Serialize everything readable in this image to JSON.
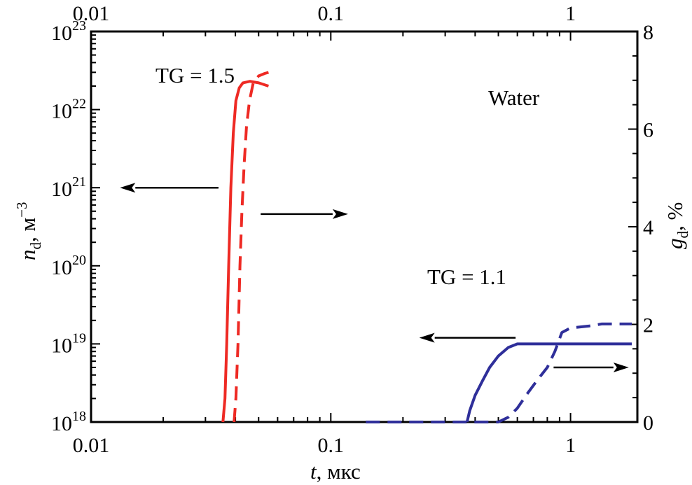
{
  "chart_data": {
    "type": "line",
    "title": "",
    "x_axis": {
      "label_var": "t",
      "label_unit": ", мкс",
      "scale": "log",
      "range": [
        0.01,
        1.9
      ],
      "ticks": [
        {
          "value": 0.01,
          "label": "0.01"
        },
        {
          "value": 0.1,
          "label": "0.1"
        },
        {
          "value": 1,
          "label": "1"
        }
      ]
    },
    "left_axis": {
      "label_var": "n",
      "label_sub": "d",
      "label_unit": ",  м",
      "label_exp": "−3",
      "scale": "log",
      "range": [
        1e+18,
        1e+23
      ],
      "ticks": [
        {
          "value": 1e+18,
          "base": "10",
          "exp": "18"
        },
        {
          "value": 1e+19,
          "base": "10",
          "exp": "19"
        },
        {
          "value": 1e+20,
          "base": "10",
          "exp": "20"
        },
        {
          "value": 1e+21,
          "base": "10",
          "exp": "21"
        },
        {
          "value": 1e+22,
          "base": "10",
          "exp": "22"
        },
        {
          "value": 1e+23,
          "base": "10",
          "exp": "23"
        }
      ]
    },
    "right_axis": {
      "label_var": "g",
      "label_sub": "d",
      "label_unit": ", %",
      "scale": "linear",
      "range": [
        0,
        8
      ],
      "ticks": [
        {
          "value": 0,
          "label": "0"
        },
        {
          "value": 2,
          "label": "2"
        },
        {
          "value": 4,
          "label": "4"
        },
        {
          "value": 6,
          "label": "6"
        },
        {
          "value": 8,
          "label": "8"
        }
      ]
    },
    "annotations": {
      "tg15": "TG = 1.5",
      "tg11": "TG = 1.1",
      "medium": "Water"
    },
    "series": [
      {
        "color": "#ee2a24",
        "dash": false,
        "axis": "left",
        "points": [
          [
            0.0355,
            1e+18
          ],
          [
            0.0362,
            2e+18
          ],
          [
            0.0368,
            1e+19
          ],
          [
            0.0375,
            1e+20
          ],
          [
            0.0383,
            1e+21
          ],
          [
            0.0392,
            5e+21
          ],
          [
            0.0402,
            1.3e+22
          ],
          [
            0.0415,
            1.9e+22
          ],
          [
            0.043,
            2.2e+22
          ],
          [
            0.046,
            2.3e+22
          ],
          [
            0.05,
            2.2e+22
          ],
          [
            0.055,
            2e+22
          ]
        ]
      },
      {
        "color": "#ee2a24",
        "dash": true,
        "axis": "left",
        "points": [
          [
            0.0395,
            1e+18
          ],
          [
            0.0402,
            2e+18
          ],
          [
            0.041,
            1e+19
          ],
          [
            0.0418,
            1e+20
          ],
          [
            0.0426,
            5e+20
          ],
          [
            0.0435,
            2e+21
          ],
          [
            0.0445,
            6e+21
          ],
          [
            0.0458,
            1.3e+22
          ],
          [
            0.0475,
            2.2e+22
          ],
          [
            0.05,
            2.7e+22
          ],
          [
            0.053,
            2.9e+22
          ],
          [
            0.055,
            3e+22
          ]
        ]
      },
      {
        "color": "#2f2f9a",
        "dash": false,
        "axis": "left",
        "points": [
          [
            0.37,
            1e+18
          ],
          [
            0.38,
            1.4e+18
          ],
          [
            0.4,
            2.2e+18
          ],
          [
            0.43,
            3.4e+18
          ],
          [
            0.46,
            5e+18
          ],
          [
            0.5,
            7e+18
          ],
          [
            0.55,
            9e+18
          ],
          [
            0.6,
            1e+19
          ],
          [
            0.7,
            1e+19
          ],
          [
            1.0,
            1e+19
          ],
          [
            1.3,
            1e+19
          ],
          [
            1.8,
            1e+19
          ]
        ]
      },
      {
        "color": "#2f2f9a",
        "dash": true,
        "axis": "left",
        "points": [
          [
            0.14,
            1e+18
          ],
          [
            0.3,
            1e+18
          ],
          [
            0.45,
            1e+18
          ],
          [
            0.5,
            1e+18
          ],
          [
            0.55,
            1.15e+18
          ],
          [
            0.6,
            1.5e+18
          ],
          [
            0.66,
            2.3e+18
          ],
          [
            0.73,
            3.5e+18
          ],
          [
            0.8,
            5e+18
          ],
          [
            0.86,
            8e+18
          ],
          [
            0.92,
            1.4e+19
          ],
          [
            1.0,
            1.6e+19
          ],
          [
            1.2,
            1.7e+19
          ],
          [
            1.35,
            1.8e+19
          ],
          [
            1.8,
            1.8e+19
          ]
        ]
      }
    ],
    "arrows": [
      {
        "from": [
          0.034,
          1e+21
        ],
        "to": [
          0.0132,
          1e+21
        ]
      },
      {
        "from": [
          0.051,
          4.6e+20
        ],
        "to": [
          0.118,
          4.6e+20
        ]
      },
      {
        "from": [
          0.59,
          1.2e+19
        ],
        "to": [
          0.234,
          1.2e+19
        ]
      },
      {
        "from": [
          0.85,
          5e+18
        ],
        "to": [
          1.75,
          5e+18
        ]
      }
    ]
  }
}
